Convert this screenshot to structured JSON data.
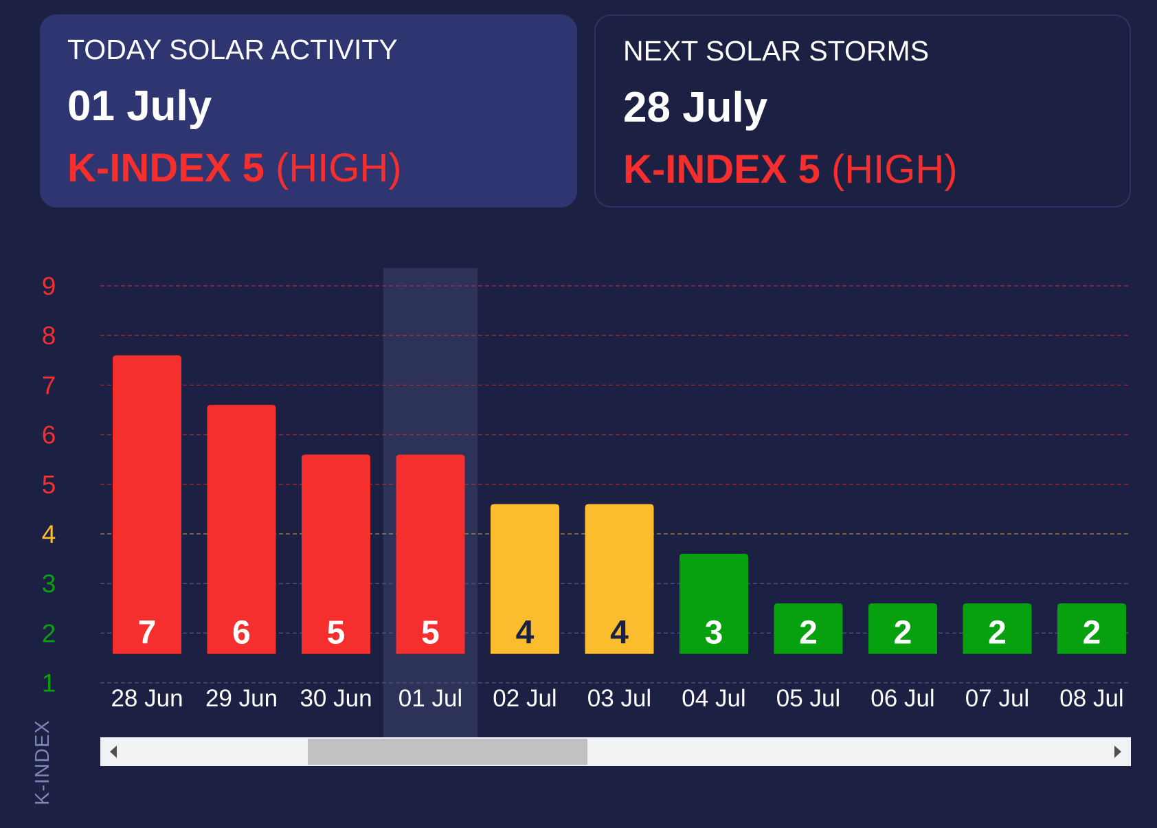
{
  "today_card": {
    "title": "TODAY SOLAR ACTIVITY",
    "date": "01 July",
    "kindex_value": "K-INDEX 5",
    "kindex_level": "(HIGH)"
  },
  "next_card": {
    "title": "NEXT SOLAR STORMS",
    "date": "28 July",
    "kindex_value": "K-INDEX 5",
    "kindex_level": "(HIGH)"
  },
  "colors": {
    "high": "#f52e2e",
    "moderate": "#fbbd2e",
    "low": "#07a10f",
    "background": "#1c2042",
    "highlight_column": "#2c3258"
  },
  "chart_data": {
    "type": "bar",
    "categories": [
      "28 Jun",
      "29 Jun",
      "30 Jun",
      "01 Jul",
      "02 Jul",
      "03 Jul",
      "04 Jul",
      "05 Jul",
      "06 Jul",
      "07 Jul",
      "08 Jul"
    ],
    "values": [
      7,
      6,
      5,
      5,
      4,
      4,
      3,
      2,
      2,
      2,
      2
    ],
    "data_labels": [
      "7",
      "6",
      "5",
      "5",
      "4",
      "4",
      "3",
      "2",
      "2",
      "2",
      "2"
    ],
    "levels": [
      "high",
      "high",
      "high",
      "high",
      "moderate",
      "moderate",
      "low",
      "low",
      "low",
      "low",
      "low"
    ],
    "highlighted_category": "01 Jul",
    "ylabel": "K-INDEX",
    "yticks": [
      {
        "value": 1,
        "label": "1",
        "level": "low"
      },
      {
        "value": 2,
        "label": "2",
        "level": "low"
      },
      {
        "value": 3,
        "label": "3",
        "level": "low"
      },
      {
        "value": 4,
        "label": "4",
        "level": "moderate"
      },
      {
        "value": 5,
        "label": "5",
        "level": "high"
      },
      {
        "value": 6,
        "label": "6",
        "level": "high"
      },
      {
        "value": 7,
        "label": "7",
        "level": "high"
      },
      {
        "value": 8,
        "label": "8",
        "level": "high"
      },
      {
        "value": 9,
        "label": "9",
        "level": "high"
      }
    ],
    "ylim": [
      1,
      9
    ],
    "grid": true,
    "legend": "none"
  }
}
